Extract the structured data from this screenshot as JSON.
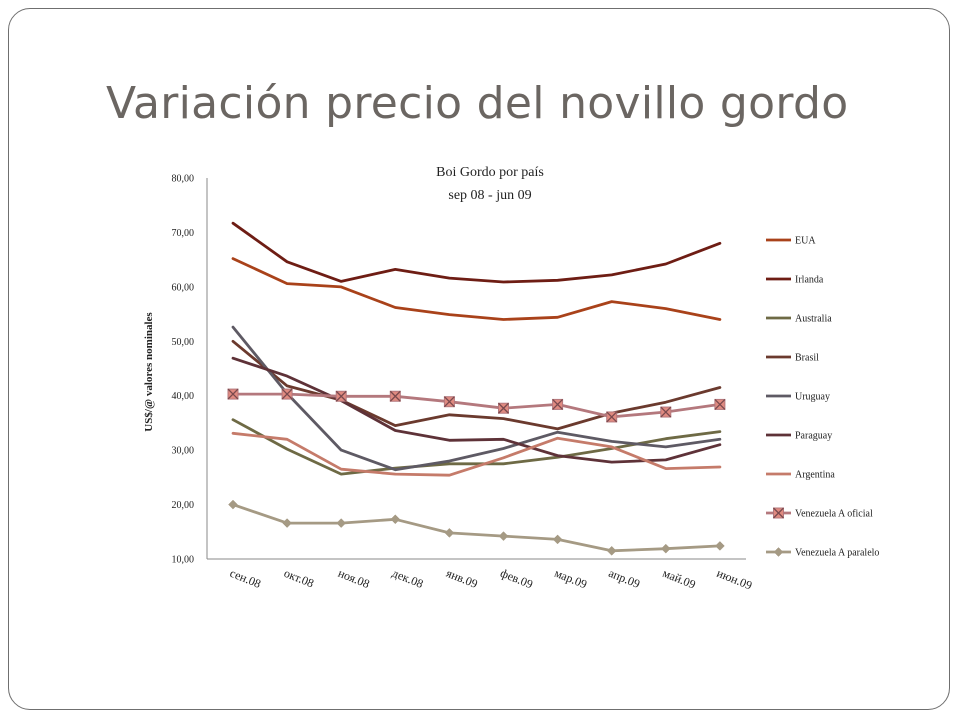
{
  "slide": {
    "title": "Variación precio del novillo gordo"
  },
  "chart_data": {
    "type": "line",
    "title": "Boi Gordo por país",
    "subtitle": "sep 08 - jun 09",
    "xlabel": "",
    "ylabel": "US$/@ valores nominales",
    "categories": [
      "сен.08",
      "окт.08",
      "ноя.08",
      "дек.08",
      "янв.09",
      "фев.09",
      "мар.09",
      "апр.09",
      "май.09",
      "июн.09"
    ],
    "ylim": [
      10,
      80
    ],
    "yticks": [
      "10,00",
      "20,00",
      "30,00",
      "40,00",
      "50,00",
      "60,00",
      "70,00",
      "80,00"
    ],
    "grid": false,
    "legend_position": "right",
    "series": [
      {
        "name": "EUA",
        "color": "#a9421a",
        "marker": "none",
        "values": [
          65.2,
          60.6,
          60.0,
          56.2,
          54.9,
          54.0,
          54.4,
          57.3,
          56.0,
          54.0
        ]
      },
      {
        "name": "Irlanda",
        "color": "#6e1d14",
        "marker": "none",
        "values": [
          71.7,
          64.6,
          61.0,
          63.2,
          61.6,
          60.9,
          61.2,
          62.2,
          64.2,
          68.0
        ]
      },
      {
        "name": "Australia",
        "color": "#6e6a45",
        "marker": "none",
        "values": [
          35.6,
          30.2,
          25.6,
          26.7,
          27.5,
          27.5,
          28.7,
          30.3,
          32.1,
          33.4
        ]
      },
      {
        "name": "Brasil",
        "color": "#6b3a2e",
        "marker": "none",
        "values": [
          50.0,
          41.8,
          39.2,
          34.5,
          36.5,
          35.8,
          33.9,
          36.8,
          38.8,
          41.5
        ]
      },
      {
        "name": "Uruguay",
        "color": "#5e5a64",
        "marker": "none",
        "values": [
          52.6,
          40.4,
          30.0,
          26.4,
          28.0,
          30.3,
          33.3,
          31.6,
          30.6,
          32.0
        ]
      },
      {
        "name": "Paraguay",
        "color": "#5e3238",
        "marker": "none",
        "values": [
          46.9,
          43.6,
          39.1,
          33.6,
          31.8,
          32.0,
          29.0,
          27.8,
          28.2,
          31.0
        ]
      },
      {
        "name": "Argentina",
        "color": "#c57b6a",
        "marker": "none",
        "values": [
          33.1,
          32.0,
          26.5,
          25.6,
          25.4,
          28.6,
          32.2,
          30.6,
          26.6,
          26.9
        ]
      },
      {
        "name": "Venezuela A oficial",
        "color": "#b4787d",
        "marker": "square-x",
        "values": [
          40.3,
          40.3,
          39.9,
          39.9,
          38.9,
          37.7,
          38.4,
          36.1,
          37.0,
          38.4
        ]
      },
      {
        "name": "Venezuela A paralelo",
        "color": "#a59a84",
        "marker": "diamond",
        "values": [
          20.0,
          16.6,
          16.6,
          17.3,
          14.8,
          14.2,
          13.6,
          11.5,
          11.9,
          12.4
        ]
      }
    ]
  }
}
